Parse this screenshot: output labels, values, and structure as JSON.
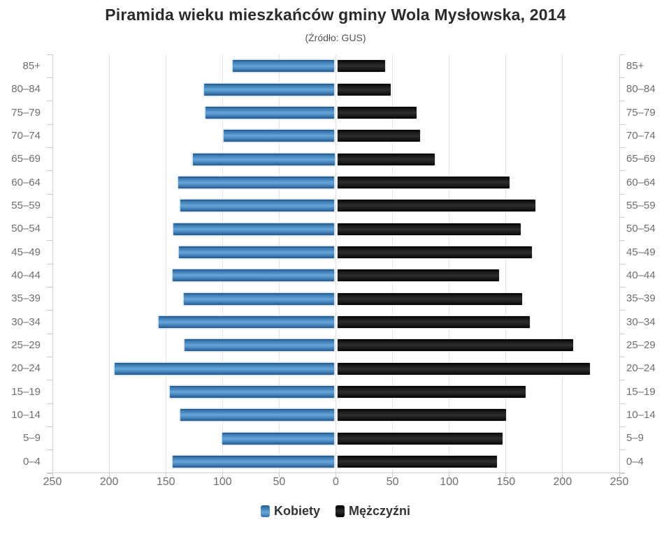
{
  "chart": {
    "title": "Piramida wieku mieszkańców gminy Wola Mysłowska, 2014",
    "subtitle": "(Źródło: GUS)"
  },
  "legend": {
    "women": "Kobiety",
    "men": "Mężczyźni"
  },
  "colors": {
    "women_bar": "#4d8cc4",
    "men_bar": "#1c1c1c",
    "gridline": "#e4e4e4",
    "axis": "#cccccc",
    "axis_text": "#6e6e6e",
    "title_text": "#2b2b2b"
  },
  "chart_data": {
    "type": "bar",
    "variant": "population-pyramid",
    "title": "Piramida wieku mieszkańców gminy Wola Mysłowska, 2014",
    "subtitle": "(Źródło: GUS)",
    "categories": [
      "85+",
      "80–84",
      "75–79",
      "70–74",
      "65–69",
      "60–64",
      "55–59",
      "50–54",
      "45–49",
      "40–44",
      "35–39",
      "30–34",
      "25–29",
      "20–24",
      "15–19",
      "10–14",
      "5–9",
      "0–4"
    ],
    "series": [
      {
        "name": "Kobiety",
        "side": "left",
        "color": "#4d8cc4",
        "values": [
          90,
          115,
          114,
          98,
          125,
          138,
          136,
          142,
          137,
          143,
          133,
          155,
          132,
          194,
          145,
          136,
          99,
          143
        ]
      },
      {
        "name": "Mężczyźni",
        "side": "right",
        "color": "#1c1c1c",
        "values": [
          42,
          47,
          70,
          73,
          86,
          152,
          175,
          162,
          172,
          143,
          163,
          170,
          208,
          223,
          166,
          149,
          146,
          141
        ]
      }
    ],
    "x_tick_values": [
      -250,
      -200,
      -150,
      -100,
      -50,
      0,
      50,
      100,
      150,
      200,
      250
    ],
    "x_tick_labels": [
      "250",
      "200",
      "150",
      "100",
      "50",
      "0",
      "50",
      "100",
      "150",
      "200",
      "250"
    ],
    "xlim": [
      -250,
      250
    ],
    "xlabel": "",
    "ylabel": "",
    "grid": true,
    "legend_position": "bottom"
  }
}
